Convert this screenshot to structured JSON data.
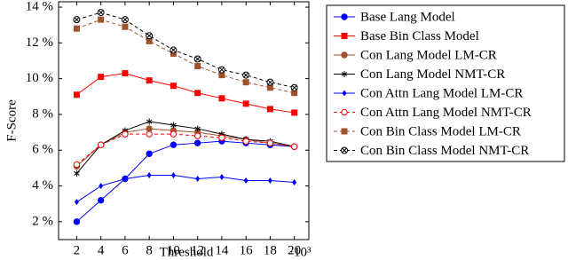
{
  "chart_data": {
    "type": "line",
    "xlabel": "Threshold",
    "ylabel": "F-Score",
    "x_multiplier": "·10³",
    "x": [
      2,
      4,
      6,
      8,
      10,
      12,
      14,
      16,
      18,
      20
    ],
    "xlim": [
      0.5,
      21.2
    ],
    "xticks": [
      2,
      4,
      6,
      8,
      10,
      12,
      14,
      16,
      18,
      20
    ],
    "ylim": [
      1,
      14.3
    ],
    "yticks": [
      {
        "value": 2,
        "label": "2 %"
      },
      {
        "value": 4,
        "label": "4 %"
      },
      {
        "value": 6,
        "label": "6 %"
      },
      {
        "value": 8,
        "label": "8 %"
      },
      {
        "value": 10,
        "label": "10 %"
      },
      {
        "value": 12,
        "label": "12 %"
      },
      {
        "value": 14,
        "label": "14 %"
      }
    ],
    "legend": "outside-right",
    "series": [
      {
        "name": "Base Lang Model",
        "color": "#0000ff",
        "marker": "circle",
        "dash": "solid",
        "values": [
          2.0,
          3.2,
          4.4,
          5.8,
          6.3,
          6.4,
          6.5,
          6.4,
          6.3,
          6.2
        ]
      },
      {
        "name": "Base Bin Class Model",
        "color": "#ff0000",
        "marker": "square",
        "dash": "solid",
        "values": [
          9.1,
          10.1,
          10.3,
          9.9,
          9.6,
          9.2,
          8.9,
          8.6,
          8.3,
          8.1
        ]
      },
      {
        "name": "Con Lang Model LM-CR",
        "color": "#a0522d",
        "marker": "circle",
        "dash": "solid",
        "values": [
          5.1,
          6.3,
          7.0,
          7.2,
          7.1,
          7.0,
          6.8,
          6.6,
          6.4,
          6.2
        ]
      },
      {
        "name": "Con Lang Model NMT-CR",
        "color": "#000000",
        "marker": "star",
        "dash": "solid",
        "values": [
          4.7,
          6.3,
          7.1,
          7.6,
          7.4,
          7.2,
          6.9,
          6.6,
          6.5,
          6.2
        ]
      },
      {
        "name": "Con Attn Lang Model LM-CR",
        "color": "#0000ff",
        "marker": "diamond",
        "dash": "solid",
        "values": [
          3.1,
          4.0,
          4.4,
          4.6,
          4.6,
          4.4,
          4.5,
          4.3,
          4.3,
          4.2
        ]
      },
      {
        "name": "Con Attn Lang Model NMT-CR",
        "color": "#ff0000",
        "marker": "circle",
        "dash": "dashed",
        "values": [
          5.2,
          6.3,
          6.9,
          6.9,
          6.9,
          6.8,
          6.7,
          6.5,
          6.4,
          6.2
        ]
      },
      {
        "name": "Con Bin Class Model LM-CR",
        "color": "#a0522d",
        "marker": "square",
        "dash": "dashed",
        "values": [
          12.8,
          13.3,
          12.9,
          12.1,
          11.4,
          10.7,
          10.2,
          9.8,
          9.5,
          9.2
        ]
      },
      {
        "name": "Con Bin Class Model NMT-CR",
        "color": "#000000",
        "marker": "otimes",
        "dash": "dashed",
        "values": [
          13.3,
          13.7,
          13.3,
          12.4,
          11.6,
          11.1,
          10.5,
          10.2,
          9.8,
          9.5
        ]
      }
    ]
  }
}
